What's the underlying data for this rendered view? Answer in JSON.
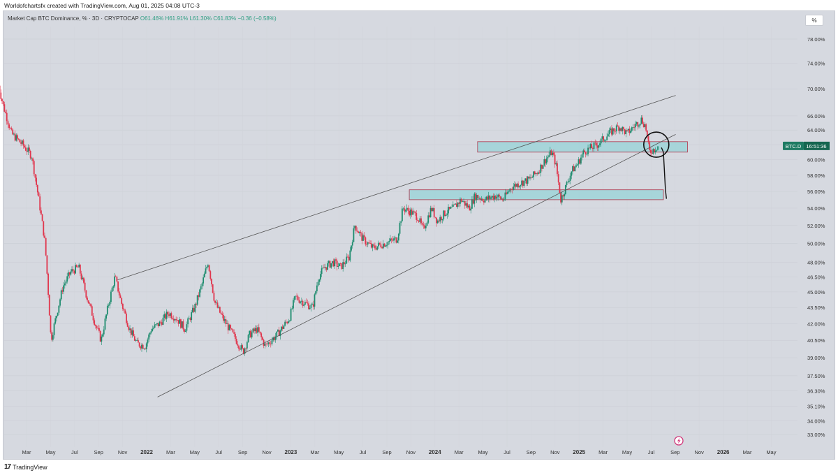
{
  "header": {
    "credit": "Worldofchartsfx created with TradingView.com, Aug 01, 2025 04:08 UTC-3"
  },
  "legend": {
    "title": "Market Cap BTC Dominance, % · 3D · CRYPTOCAP",
    "ohlc": "O61.46% H61.91% L61.30% C61.83% −0.36 (−0.58%)"
  },
  "scale_button": "%",
  "price_tag": {
    "symbol": "BTC.D",
    "countdown": "16:51:36"
  },
  "footer": {
    "logo_text": "TradingView"
  },
  "colors": {
    "up": "#1e8c6e",
    "down": "#e0364d",
    "zone_fill": "#9fd3d8",
    "zone_border": "#b0455a",
    "background": "#d6d9e0"
  },
  "icons": {
    "lightning": "lightning-icon",
    "logo": "tradingview-logo-icon"
  },
  "chart_data": {
    "type": "candlestick",
    "title": "Market Cap BTC Dominance, % · 3D · CRYPTOCAP",
    "scale": "log",
    "y_ticks": [
      "78.00%",
      "74.00%",
      "70.00%",
      "66.00%",
      "64.00%",
      "62.00%",
      "60.00%",
      "58.00%",
      "56.00%",
      "54.00%",
      "52.00%",
      "50.00%",
      "48.00%",
      "46.50%",
      "45.00%",
      "43.50%",
      "42.00%",
      "40.50%",
      "39.00%",
      "37.50%",
      "36.30%",
      "35.10%",
      "34.00%",
      "33.00%"
    ],
    "y_tick_values": [
      78,
      74,
      70,
      66,
      64,
      62,
      60,
      58,
      56,
      54,
      52,
      50,
      48,
      46.5,
      45,
      43.5,
      42,
      40.5,
      39,
      37.5,
      36.3,
      35.1,
      34,
      33
    ],
    "x_ticks": [
      "Mar",
      "May",
      "Jul",
      "Sep",
      "Nov",
      "2022",
      "Mar",
      "May",
      "Jul",
      "Sep",
      "Nov",
      "2023",
      "Mar",
      "May",
      "Jul",
      "Sep",
      "Nov",
      "2024",
      "Mar",
      "May",
      "Jul",
      "Sep",
      "Nov",
      "2025",
      "Mar",
      "May",
      "Jul",
      "Sep",
      "Nov",
      "2026",
      "Mar",
      "May"
    ],
    "x_start": "2021-03",
    "last_value": 61.83,
    "path_anchors": [
      [
        "2021-01-03",
        70.5
      ],
      [
        "2021-01-15",
        67.5
      ],
      [
        "2021-02-05",
        63.5
      ],
      [
        "2021-03-05",
        62.0
      ],
      [
        "2021-03-28",
        60.5
      ],
      [
        "2021-04-15",
        55.0
      ],
      [
        "2021-05-01",
        50.0
      ],
      [
        "2021-05-16",
        40.5
      ],
      [
        "2021-05-28",
        42.5
      ],
      [
        "2021-06-15",
        45.5
      ],
      [
        "2021-07-05",
        47.0
      ],
      [
        "2021-07-25",
        47.5
      ],
      [
        "2021-08-15",
        44.5
      ],
      [
        "2021-09-05",
        42.0
      ],
      [
        "2021-09-20",
        40.5
      ],
      [
        "2021-10-10",
        44.0
      ],
      [
        "2021-10-25",
        46.5
      ],
      [
        "2021-11-10",
        44.0
      ],
      [
        "2021-12-01",
        41.5
      ],
      [
        "2021-12-20",
        40.2
      ],
      [
        "2022-01-10",
        40.0
      ],
      [
        "2022-01-25",
        41.5
      ],
      [
        "2022-02-15",
        42.0
      ],
      [
        "2022-03-10",
        43.0
      ],
      [
        "2022-03-30",
        42.5
      ],
      [
        "2022-04-20",
        41.5
      ],
      [
        "2022-05-15",
        43.5
      ],
      [
        "2022-06-01",
        45.5
      ],
      [
        "2022-06-18",
        48.0
      ],
      [
        "2022-07-05",
        44.0
      ],
      [
        "2022-07-25",
        42.5
      ],
      [
        "2022-08-20",
        41.0
      ],
      [
        "2022-09-15",
        39.5
      ],
      [
        "2022-10-01",
        41.0
      ],
      [
        "2022-10-20",
        41.5
      ],
      [
        "2022-11-10",
        40.0
      ],
      [
        "2022-12-10",
        41.0
      ],
      [
        "2023-01-10",
        42.5
      ],
      [
        "2023-01-25",
        44.5
      ],
      [
        "2023-02-15",
        44.0
      ],
      [
        "2023-03-10",
        43.5
      ],
      [
        "2023-03-25",
        46.5
      ],
      [
        "2023-04-10",
        47.5
      ],
      [
        "2023-05-01",
        48.0
      ],
      [
        "2023-05-20",
        47.5
      ],
      [
        "2023-06-10",
        48.5
      ],
      [
        "2023-06-25",
        52.0
      ],
      [
        "2023-07-15",
        50.5
      ],
      [
        "2023-08-10",
        49.5
      ],
      [
        "2023-08-25",
        49.8
      ],
      [
        "2023-09-20",
        50.2
      ],
      [
        "2023-10-10",
        50.5
      ],
      [
        "2023-10-25",
        54.0
      ],
      [
        "2023-11-15",
        53.5
      ],
      [
        "2023-12-01",
        53.0
      ],
      [
        "2023-12-15",
        51.5
      ],
      [
        "2024-01-05",
        54.0
      ],
      [
        "2024-01-20",
        52.5
      ],
      [
        "2024-02-10",
        53.5
      ],
      [
        "2024-03-01",
        54.0
      ],
      [
        "2024-03-20",
        55.0
      ],
      [
        "2024-04-10",
        54.0
      ],
      [
        "2024-04-25",
        55.5
      ],
      [
        "2024-05-20",
        55.0
      ],
      [
        "2024-06-15",
        55.5
      ],
      [
        "2024-07-05",
        55.0
      ],
      [
        "2024-07-25",
        56.5
      ],
      [
        "2024-08-15",
        57.0
      ],
      [
        "2024-09-10",
        57.5
      ],
      [
        "2024-10-01",
        58.5
      ],
      [
        "2024-10-20",
        60.0
      ],
      [
        "2024-11-05",
        61.0
      ],
      [
        "2024-11-15",
        59.5
      ],
      [
        "2024-11-28",
        55.0
      ],
      [
        "2024-12-10",
        56.5
      ],
      [
        "2024-12-25",
        58.5
      ],
      [
        "2025-01-10",
        59.5
      ],
      [
        "2025-01-25",
        61.0
      ],
      [
        "2025-02-10",
        61.5
      ],
      [
        "2025-03-01",
        62.0
      ],
      [
        "2025-03-20",
        63.0
      ],
      [
        "2025-04-10",
        64.0
      ],
      [
        "2025-04-25",
        64.5
      ],
      [
        "2025-05-15",
        63.5
      ],
      [
        "2025-06-01",
        64.5
      ],
      [
        "2025-06-20",
        65.5
      ],
      [
        "2025-07-01",
        64.5
      ],
      [
        "2025-07-10",
        61.0
      ],
      [
        "2025-07-25",
        61.5
      ],
      [
        "2025-08-01",
        61.83
      ]
    ],
    "trend_lines": [
      {
        "name": "upper-channel-line",
        "from": [
          "2021-11-01",
          46.2
        ],
        "to": [
          "2025-09-15",
          69.0
        ]
      },
      {
        "name": "lower-channel-line",
        "from": [
          "2022-02-10",
          35.8
        ],
        "to": [
          "2025-09-15",
          63.4
        ]
      }
    ],
    "zones": [
      {
        "name": "resistance-zone",
        "from": "2024-05-01",
        "to": "2025-10-15",
        "low": 61.0,
        "high": 62.4
      },
      {
        "name": "support-zone",
        "from": "2023-11-10",
        "to": "2025-08-15",
        "low": 55.0,
        "high": 56.2
      }
    ],
    "annotations": {
      "circle": {
        "date": "2025-07-28",
        "value": 62.0
      },
      "arrow_path": [
        [
          "2025-08-10",
          61.6
        ],
        [
          "2025-08-15",
          61.0
        ],
        [
          "2025-08-20",
          56.3
        ]
      ]
    }
  }
}
